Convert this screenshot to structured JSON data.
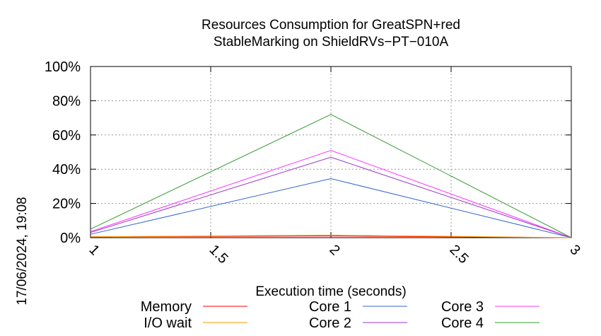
{
  "chart_data": {
    "type": "line",
    "title": "Resources Consumption for GreatSPN+red",
    "subtitle": "StableMarking on ShieldRVs−PT−010A",
    "xlabel": "Execution time (seconds)",
    "ylabel": "",
    "timestamp": "17/06/2024, 19:08",
    "x": [
      1,
      2,
      3
    ],
    "xlim": [
      1,
      3
    ],
    "ylim": [
      0,
      100
    ],
    "x_ticks": [
      "1",
      "1.5",
      "2",
      "2.5",
      "3"
    ],
    "y_ticks": [
      "0%",
      "20%",
      "40%",
      "60%",
      "80%",
      "100%"
    ],
    "grid": true,
    "legend_position": "bottom",
    "series": [
      {
        "name": "Memory",
        "color": "#ff0000",
        "values": [
          0.5,
          1.0,
          0.0
        ]
      },
      {
        "name": "I/O wait",
        "color": "#ff9900",
        "values": [
          0.5,
          1.5,
          0.0
        ]
      },
      {
        "name": "Core 1",
        "color": "#3366cc",
        "values": [
          2.0,
          34.5,
          0.0
        ]
      },
      {
        "name": "Core 2",
        "color": "#9933cc",
        "values": [
          3.0,
          47.0,
          0.0
        ]
      },
      {
        "name": "Core 3",
        "color": "#ff33ff",
        "values": [
          3.5,
          51.0,
          0.0
        ]
      },
      {
        "name": "Core 4",
        "color": "#339933",
        "values": [
          5.0,
          72.0,
          0.0
        ]
      }
    ]
  }
}
